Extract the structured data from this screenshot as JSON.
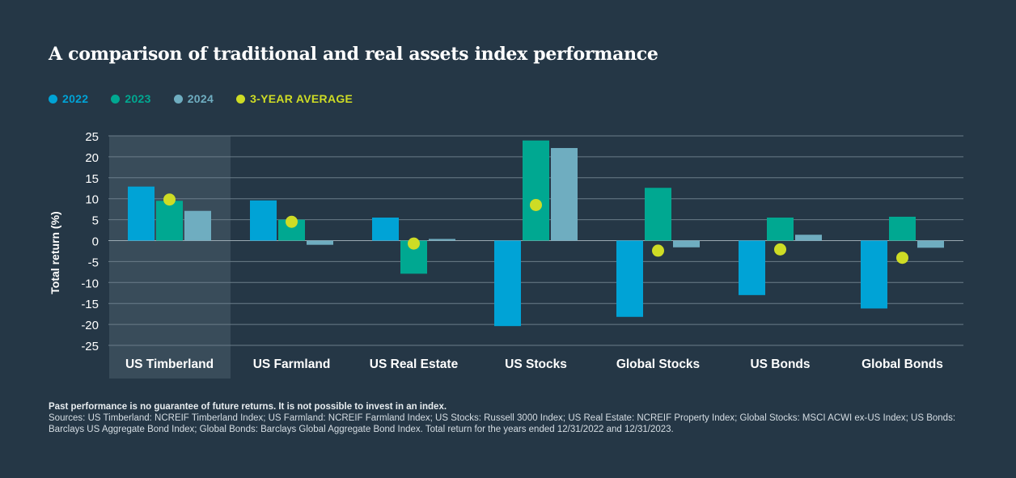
{
  "title": "A comparison of traditional and real assets index performance",
  "colors": {
    "background": "#253746",
    "y2022": "#00a3d6",
    "y2023": "#00a891",
    "y2024": "#6fadc0",
    "avg": "#cedc25",
    "grid": "#6b7d89",
    "highlight": "#394c5a"
  },
  "chart_data": {
    "type": "bar",
    "title": "A comparison of traditional and real assets index performance",
    "xlabel": "",
    "ylabel": "Total return (%)",
    "ylim": [
      -25,
      25
    ],
    "yticks": [
      25,
      20,
      15,
      10,
      5,
      0,
      -5,
      -10,
      -15,
      -20,
      -25
    ],
    "highlight_category": "US Timberland",
    "categories": [
      "US Timberland",
      "US Farmland",
      "US Real Estate",
      "US Stocks",
      "Global Stocks",
      "US Bonds",
      "Global Bonds"
    ],
    "series": [
      {
        "name": "2022",
        "color": "#00a3d6",
        "values": [
          12.9,
          9.6,
          5.5,
          -20.4,
          -18.2,
          -13.0,
          -16.2
        ]
      },
      {
        "name": "2023",
        "color": "#00a891",
        "values": [
          9.5,
          5.0,
          -7.9,
          23.9,
          12.6,
          5.5,
          5.7
        ]
      },
      {
        "name": "2024",
        "color": "#6fadc0",
        "values": [
          7.1,
          -1.0,
          0.4,
          22.1,
          -1.6,
          1.4,
          -1.7
        ]
      }
    ],
    "average": {
      "name": "3-YEAR AVERAGE",
      "color": "#cedc25",
      "values": [
        9.8,
        4.5,
        -0.7,
        8.5,
        -2.4,
        -2.1,
        -4.1
      ]
    },
    "legend": [
      "2022",
      "2023",
      "2024",
      "3-YEAR AVERAGE"
    ],
    "legend_position": "top-left"
  },
  "footer": {
    "disclaimer": "Past performance is no guarantee of future returns. It is not possible to invest in an index.",
    "sources": "Sources: US Timberland: NCREIF Timberland Index; US Farmland: NCREIF Farmland Index; US Stocks: Russell 3000 Index; US Real Estate: NCREIF Property Index; Global Stocks: MSCI ACWI ex-US Index; US Bonds: Barclays US Aggregate Bond Index; Global Bonds: Barclays Global Aggregate Bond Index. Total return for the years ended 12/31/2022 and 12/31/2023."
  }
}
